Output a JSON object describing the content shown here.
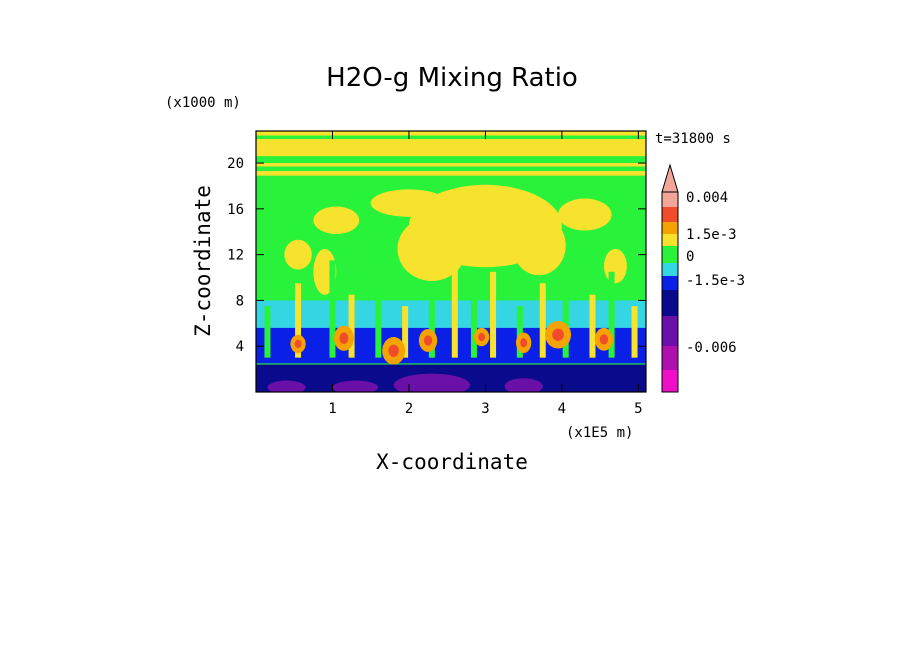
{
  "chart_data": {
    "type": "heatmap",
    "title": "H2O-g Mixing Ratio",
    "xlabel": "X-coordinate",
    "ylabel": "Z-coordinate",
    "x_unit": "(x1E5 m)",
    "y_unit": "(x1000 m)",
    "time_label": "t=31800 s",
    "xlim": [
      0,
      5.1
    ],
    "ylim": [
      0,
      22.8
    ],
    "x_ticks": [
      1,
      2,
      3,
      4,
      5
    ],
    "y_ticks": [
      4,
      8,
      12,
      16,
      20
    ],
    "grid": false,
    "colorbar": {
      "position": "right",
      "tick_labels": [
        "0.004",
        "1.5e-3",
        "0",
        "-1.5e-3",
        "-0.006"
      ],
      "levels_top_to_bottom": [
        "#f2a598",
        "#f04b2b",
        "#f5a300",
        "#f7e22e",
        "#28f23a",
        "#35d6e3",
        "#0b20e6",
        "#0a0a8c",
        "#6a0fa8",
        "#b00fb0",
        "#f00fc8"
      ]
    },
    "bands": [
      {
        "z": [
          18.8,
          22.8
        ],
        "level": "yellow-green"
      },
      {
        "z": [
          10,
          18.8
        ],
        "level": "green-yellow"
      },
      {
        "z": [
          5.5,
          10
        ],
        "level": "green-cyan-plumes"
      },
      {
        "z": [
          2.5,
          5.5
        ],
        "level": "cyan-blue-orange-cores"
      },
      {
        "z": [
          0,
          2.5
        ],
        "level": "blue-purple"
      }
    ]
  }
}
